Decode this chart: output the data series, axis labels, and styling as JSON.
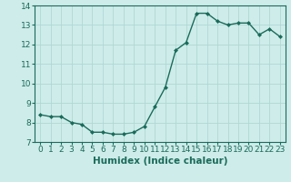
{
  "x": [
    0,
    1,
    2,
    3,
    4,
    5,
    6,
    7,
    8,
    9,
    10,
    11,
    12,
    13,
    14,
    15,
    16,
    17,
    18,
    19,
    20,
    21,
    22,
    23
  ],
  "y": [
    8.4,
    8.3,
    8.3,
    8.0,
    7.9,
    7.5,
    7.5,
    7.4,
    7.4,
    7.5,
    7.8,
    8.8,
    9.8,
    11.7,
    12.1,
    13.6,
    13.6,
    13.2,
    13.0,
    13.1,
    13.1,
    12.5,
    12.8,
    12.4
  ],
  "line_color": "#1a6b5a",
  "marker_color": "#1a6b5a",
  "bg_color": "#ceecea",
  "grid_color": "#aed8d4",
  "xlabel": "Humidex (Indice chaleur)",
  "ylabel": "",
  "xlim": [
    -0.5,
    23.5
  ],
  "ylim": [
    7,
    14
  ],
  "yticks": [
    7,
    8,
    9,
    10,
    11,
    12,
    13,
    14
  ],
  "xticks": [
    0,
    1,
    2,
    3,
    4,
    5,
    6,
    7,
    8,
    9,
    10,
    11,
    12,
    13,
    14,
    15,
    16,
    17,
    18,
    19,
    20,
    21,
    22,
    23
  ],
  "title": "",
  "tick_fontsize": 6.5,
  "xlabel_fontsize": 7.5
}
